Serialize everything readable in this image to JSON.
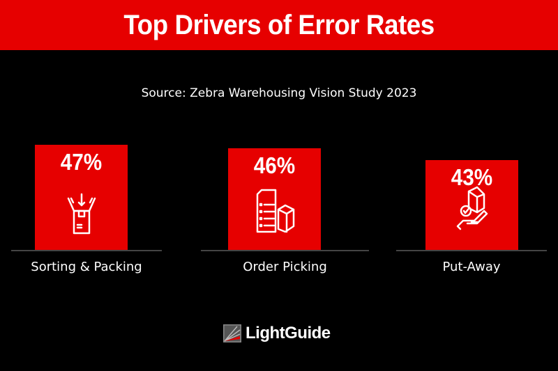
{
  "chart_data": {
    "type": "bar",
    "title": "Top Drivers of Error Rates",
    "subtitle": "Source: Zebra Warehousing Vision Study 2023",
    "categories": [
      "Sorting & Packing",
      "Order Picking",
      "Put-Away"
    ],
    "values": [
      47,
      46,
      43
    ],
    "value_labels": [
      "47%",
      "46%",
      "43%"
    ],
    "icons": [
      "open-box-icon",
      "checklist-box-icon",
      "hand-box-check-icon"
    ],
    "xlabel": "",
    "ylabel": "",
    "grid": false,
    "bar_color": "#e60000"
  },
  "logo": {
    "text": "LightGuide"
  }
}
